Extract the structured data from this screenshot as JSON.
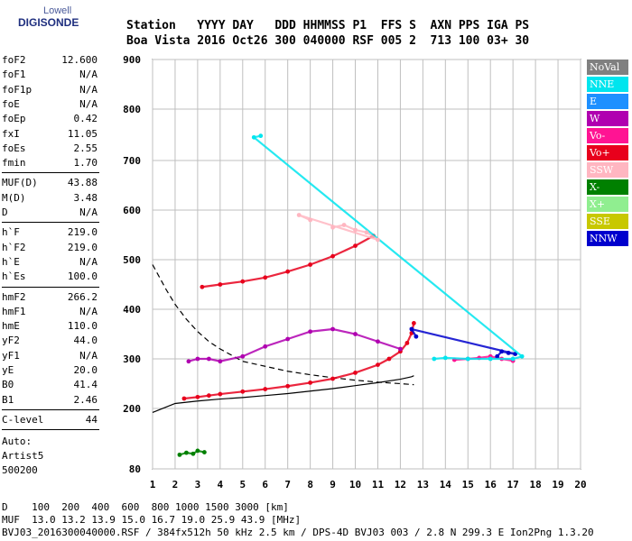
{
  "logo": {
    "line1": "Lowell",
    "line2": "DIGISONDE"
  },
  "header": {
    "labels": "Station   YYYY DAY   DDD HHMMSS P1  FFS S  AXN PPS IGA PS",
    "values": "Boa Vista 2016 Oct26 300 040000 RSF 005 2  713 100 03+ 30"
  },
  "params_group1": [
    {
      "k": "foF2",
      "v": "12.600"
    },
    {
      "k": "foF1",
      "v": "N/A"
    },
    {
      "k": "foF1p",
      "v": "N/A"
    },
    {
      "k": "foE",
      "v": "N/A"
    },
    {
      "k": "foEp",
      "v": "0.42"
    },
    {
      "k": "fxI",
      "v": "11.05"
    },
    {
      "k": "foEs",
      "v": "2.55"
    },
    {
      "k": "fmin",
      "v": "1.70"
    }
  ],
  "params_group2": [
    {
      "k": "MUF(D)",
      "v": "43.88"
    },
    {
      "k": "M(D)",
      "v": "3.48"
    },
    {
      "k": "D",
      "v": "N/A"
    }
  ],
  "params_group3": [
    {
      "k": "h`F",
      "v": "219.0"
    },
    {
      "k": "h`F2",
      "v": "219.0"
    },
    {
      "k": "h`E",
      "v": "N/A"
    },
    {
      "k": "h`Es",
      "v": "100.0"
    }
  ],
  "params_group4": [
    {
      "k": "hmF2",
      "v": "266.2"
    },
    {
      "k": "hmF1",
      "v": "N/A"
    },
    {
      "k": "hmE",
      "v": "110.0"
    },
    {
      "k": "yF2",
      "v": "44.0"
    },
    {
      "k": "yF1",
      "v": "N/A"
    },
    {
      "k": "yE",
      "v": "20.0"
    },
    {
      "k": "B0",
      "v": "41.4"
    },
    {
      "k": "B1",
      "v": "2.46"
    }
  ],
  "params_group5": [
    {
      "k": "C-level",
      "v": "44"
    }
  ],
  "autoscale": {
    "line1": "Auto:",
    "line2": "Artist5",
    "line3": "500200"
  },
  "legend": [
    {
      "label": "NoVal",
      "color": "#808080",
      "text": "#ffffff"
    },
    {
      "label": "NNE",
      "color": "#00e5ee",
      "text": "#ffffff"
    },
    {
      "label": "E",
      "color": "#1e90ff",
      "text": "#ffffff"
    },
    {
      "label": "W",
      "color": "#b000b0",
      "text": "#ffffff"
    },
    {
      "label": "Vo-",
      "color": "#ff1493",
      "text": "#ffffff"
    },
    {
      "label": "Vo+",
      "color": "#e8001c",
      "text": "#ffffff"
    },
    {
      "label": "SSW",
      "color": "#ffb6c1",
      "text": "#ffffff"
    },
    {
      "label": "X-",
      "color": "#008000",
      "text": "#ffffff"
    },
    {
      "label": "X+",
      "color": "#90ee90",
      "text": "#ffffff"
    },
    {
      "label": "SSE",
      "color": "#c8c800",
      "text": "#ffffff"
    },
    {
      "label": "NNW",
      "color": "#0000cd",
      "text": "#ffffff"
    }
  ],
  "footer": {
    "line1": "D    100  200  400  600  800 1000 1500 3000 [km]",
    "line2": "MUF  13.0 13.2 13.9 15.0 16.7 19.0 25.9 43.9 [MHz]",
    "line3": "BVJ03_2016300040000.RSF / 384fx512h 50 kHz 2.5 km / DPS-4D BVJ03 003 / 2.8 N 299.3 E Ion2Png 1.3.20"
  },
  "chart_data": {
    "type": "scatter",
    "xlim": [
      1,
      20
    ],
    "ylim": [
      80,
      900
    ],
    "xticks": [
      "1",
      "2",
      "3",
      "4",
      "5",
      "6",
      "7",
      "8",
      "9",
      "10",
      "11",
      "12",
      "13",
      "14",
      "15",
      "16",
      "17",
      "18",
      "19",
      "20"
    ],
    "yticks": [
      "80",
      "200",
      "300",
      "400",
      "500",
      "600",
      "700",
      "800",
      "900"
    ],
    "ytick_values": [
      80,
      200,
      300,
      400,
      500,
      600,
      700,
      800,
      900
    ],
    "grid": true,
    "series": [
      {
        "name": "Vo+",
        "color": "#e8001c",
        "x": [
          2.4,
          3.0,
          3.5,
          4.0,
          5.0,
          6.0,
          7.0,
          8.0,
          9.0,
          10.0,
          11.0,
          11.5,
          12.0,
          12.3,
          12.5,
          12.6
        ],
        "y": [
          220,
          223,
          226,
          229,
          234,
          239,
          245,
          252,
          260,
          272,
          288,
          300,
          315,
          332,
          352,
          372
        ]
      },
      {
        "name": "Vo+",
        "color": "#e8001c",
        "x": [
          3.2,
          4.0,
          5.0,
          6.0,
          7.0,
          8.0,
          9.0,
          10.0,
          10.8
        ],
        "y": [
          445,
          450,
          456,
          464,
          476,
          490,
          507,
          528,
          548
        ]
      },
      {
        "name": "Vo-",
        "color": "#ff1493",
        "x": [
          14.4,
          15.0,
          15.5,
          16.0,
          16.5,
          17.0
        ],
        "y": [
          298,
          300,
          302,
          305,
          300,
          296
        ]
      },
      {
        "name": "NNW",
        "color": "#0000cd",
        "x": [
          16.3,
          16.5,
          16.8,
          17.1,
          12.5,
          12.7
        ],
        "y": [
          305,
          315,
          312,
          310,
          360,
          345
        ]
      },
      {
        "name": "W",
        "color": "#b000b0",
        "x": [
          2.6,
          3.0,
          3.5,
          4.0,
          5.0,
          6.0,
          7.0,
          8.0,
          9.0,
          10.0,
          11.0,
          12.0
        ],
        "y": [
          295,
          300,
          300,
          295,
          305,
          325,
          340,
          355,
          360,
          350,
          335,
          320
        ]
      },
      {
        "name": "NNE",
        "color": "#00e5ee",
        "x": [
          13.5,
          14.0,
          15.0,
          16.0,
          17.0,
          17.4,
          5.5,
          5.8
        ],
        "y": [
          300,
          302,
          300,
          300,
          300,
          305,
          745,
          748
        ]
      },
      {
        "name": "SSW",
        "color": "#ffb6c1",
        "x": [
          9.0,
          9.5,
          10.0,
          10.5,
          11.0,
          7.5,
          8.0
        ],
        "y": [
          565,
          570,
          560,
          555,
          540,
          590,
          580
        ]
      },
      {
        "name": "X-",
        "color": "#008000",
        "x": [
          2.2,
          2.5,
          2.8,
          3.0,
          3.3
        ],
        "y": [
          108,
          112,
          110,
          116,
          113
        ]
      }
    ],
    "profile_true_height": {
      "x": [
        1.0,
        2.0,
        3.0,
        4.0,
        5.0,
        6.0,
        7.0,
        8.0,
        9.0,
        10.0,
        11.0,
        12.0,
        12.3,
        12.5,
        12.6
      ],
      "y": [
        192,
        210,
        215,
        219,
        222,
        226,
        230,
        235,
        240,
        246,
        252,
        259,
        262,
        264,
        266
      ]
    },
    "profile_dashed": {
      "x": [
        1.0,
        1.3,
        1.6,
        2.0,
        2.5,
        3.0,
        3.5,
        4.0,
        5.0,
        6.0,
        7.0,
        8.0,
        9.0,
        10.0,
        11.0,
        12.0,
        12.6
      ],
      "y": [
        490,
        465,
        440,
        410,
        380,
        355,
        335,
        320,
        295,
        285,
        275,
        268,
        262,
        257,
        253,
        250,
        248
      ]
    }
  }
}
